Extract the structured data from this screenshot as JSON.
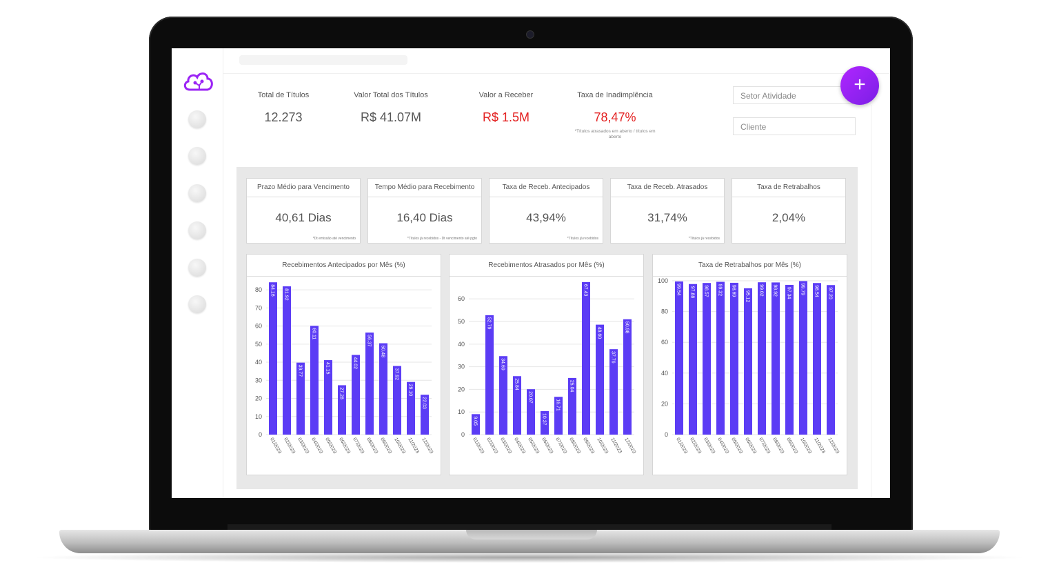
{
  "kpis": [
    {
      "label": "Total de Títulos",
      "value": "12.273"
    },
    {
      "label": "Valor Total dos Títulos",
      "value": "R$ 41.07M"
    },
    {
      "label": "Valor a Receber",
      "value": "R$ 1.5M"
    },
    {
      "label": "Taxa de Inadimplência",
      "value": "78,47%",
      "note": "*Títulos atrasados em aberto / títulos em aberto"
    }
  ],
  "filters": {
    "setor_placeholder": "Setor Atividade",
    "cliente_placeholder": "Cliente"
  },
  "fab_label": "+",
  "cards": [
    {
      "title": "Prazo Médio para Vencimento",
      "value": "40,61 Dias",
      "note": "*Dt emissão até vencimento"
    },
    {
      "title": "Tempo Médio para Recebimento",
      "value": "16,40 Dias",
      "note": "*Títulos já recebidos - Dt vencimento até pgto"
    },
    {
      "title": "Taxa de Receb. Antecipados",
      "value": "43,94%",
      "note": "*Títulos já recebidos"
    },
    {
      "title": "Taxa de Receb. Atrasados",
      "value": "31,74%",
      "note": "*Títulos já recebidos"
    },
    {
      "title": "Taxa de Retrabalhos",
      "value": "2,04%",
      "note": ""
    }
  ],
  "colors": {
    "bar": "#5b3cf5",
    "red": "#e32020",
    "accent": "#9b24f5"
  },
  "chart_data": [
    {
      "type": "bar",
      "title": "Recebimentos Antecipados por Mês (%)",
      "categories": [
        "01/2023",
        "02/2023",
        "03/2023",
        "04/2023",
        "05/2023",
        "06/2023",
        "07/2023",
        "08/2023",
        "09/2023",
        "10/2023",
        "11/2023",
        "12/2023"
      ],
      "values": [
        84.16,
        81.92,
        39.77,
        60.11,
        41.15,
        27.28,
        44.02,
        56.37,
        50.48,
        37.92,
        29.1,
        22.03
      ],
      "value_labels": [
        "84.16",
        "81.92",
        "39.77",
        "60.11",
        "41.15",
        "27.28",
        "44.02",
        "56.37",
        "50.48",
        "37.92",
        "29.10",
        "22.03"
      ],
      "ylim": [
        0,
        85
      ],
      "yticks": [
        0,
        10,
        20,
        30,
        40,
        50,
        60,
        70,
        80
      ]
    },
    {
      "type": "bar",
      "title": "Recebimentos Atrasados por Mês (%)",
      "categories": [
        "01/2023",
        "02/2023",
        "03/2023",
        "04/2023",
        "05/2023",
        "06/2023",
        "07/2023",
        "08/2023",
        "09/2023",
        "10/2023",
        "11/2023",
        "12/2023"
      ],
      "values": [
        9.05,
        52.79,
        34.69,
        25.84,
        20.07,
        10.37,
        16.71,
        25.04,
        67.43,
        48.6,
        37.76,
        50.98
      ],
      "value_labels": [
        "9.05",
        "52.79",
        "34.69",
        "25.84",
        "20.07",
        "10.37",
        "16.71",
        "25.04",
        "67.43",
        "48.60",
        "37.76",
        "50.98"
      ],
      "ylim": [
        0,
        68
      ],
      "yticks": [
        0,
        10,
        20,
        30,
        40,
        50,
        60
      ]
    },
    {
      "type": "bar",
      "title": "Taxa de Retrabalhos por Mês (%)",
      "categories": [
        "01/2023",
        "02/2023",
        "03/2023",
        "04/2023",
        "05/2023",
        "06/2023",
        "07/2023",
        "08/2023",
        "09/2023",
        "10/2023",
        "11/2023",
        "12/2023"
      ],
      "values": [
        99.54,
        97.88,
        98.57,
        99.32,
        98.69,
        95.12,
        99.02,
        98.92,
        97.34,
        99.79,
        98.54,
        97.2
      ],
      "value_labels": [
        "99.54",
        "97.88",
        "98.57",
        "99.32",
        "98.69",
        "95.12",
        "99.02",
        "98.92",
        "97.34",
        "99.79",
        "98.54",
        "97.20"
      ],
      "ylim": [
        0,
        100
      ],
      "yticks": [
        0,
        20,
        40,
        60,
        80,
        100
      ]
    }
  ]
}
